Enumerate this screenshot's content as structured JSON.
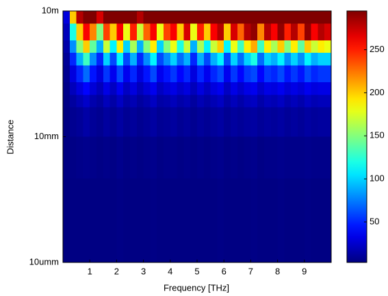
{
  "chart_data": {
    "type": "heatmap",
    "xlabel": "Frequency [THz]",
    "ylabel": "Distance",
    "xlim": [
      0,
      10
    ],
    "xticks": [
      1,
      2,
      3,
      4,
      5,
      6,
      7,
      8,
      9
    ],
    "ylim": [
      1e-05,
      10
    ],
    "yscale": "log",
    "yticks": [
      {
        "value": 1e-05,
        "label": "10umm"
      },
      {
        "value": 0.01,
        "label": "10mm"
      },
      {
        "value": 10,
        "label": "10m"
      }
    ],
    "colormap": "jet",
    "clim": [
      3,
      295
    ],
    "cticks": [
      50,
      100,
      150,
      200,
      250
    ],
    "xbins": [
      0,
      0.25,
      0.5,
      0.75,
      1,
      1.25,
      1.5,
      1.75,
      2,
      2.25,
      2.5,
      2.75,
      3,
      3.25,
      3.5,
      3.75,
      4,
      4.25,
      4.5,
      4.75,
      5,
      5.25,
      5.5,
      5.75,
      6,
      6.25,
      6.5,
      6.75,
      7,
      7.25,
      7.5,
      7.75,
      8,
      8.25,
      8.5,
      8.75,
      9,
      9.25,
      9.5,
      9.75,
      10
    ],
    "ybins": [
      10,
      5,
      2,
      1,
      0.5,
      0.2,
      0.1,
      0.05,
      0.01,
      0.001,
      1e-05
    ],
    "z": [
      [
        30,
        200,
        280,
        295,
        295,
        270,
        295,
        295,
        295,
        295,
        295,
        280,
        295,
        295,
        295,
        295,
        295,
        295,
        295,
        295,
        295,
        295,
        295,
        295,
        295,
        295,
        295,
        295,
        295,
        295,
        295,
        295,
        295,
        295,
        295,
        295,
        295,
        295,
        295,
        295
      ],
      [
        20,
        120,
        200,
        260,
        220,
        150,
        240,
        200,
        260,
        180,
        250,
        170,
        230,
        260,
        180,
        240,
        260,
        200,
        270,
        180,
        250,
        200,
        260,
        280,
        200,
        270,
        230,
        280,
        290,
        220,
        280,
        260,
        290,
        250,
        280,
        240,
        290,
        260,
        280,
        270
      ],
      [
        15,
        80,
        150,
        200,
        140,
        90,
        170,
        110,
        190,
        100,
        160,
        90,
        150,
        190,
        100,
        150,
        180,
        120,
        170,
        90,
        160,
        110,
        170,
        200,
        110,
        180,
        130,
        190,
        210,
        130,
        190,
        160,
        200,
        150,
        190,
        140,
        200,
        170,
        190,
        180
      ],
      [
        10,
        50,
        90,
        130,
        80,
        50,
        100,
        60,
        110,
        60,
        90,
        50,
        80,
        110,
        60,
        80,
        100,
        70,
        90,
        50,
        90,
        60,
        90,
        110,
        60,
        100,
        70,
        100,
        120,
        70,
        100,
        90,
        110,
        80,
        100,
        80,
        110,
        90,
        100,
        100
      ],
      [
        8,
        30,
        50,
        70,
        45,
        30,
        55,
        35,
        60,
        35,
        50,
        30,
        45,
        60,
        35,
        45,
        55,
        40,
        50,
        30,
        50,
        35,
        50,
        60,
        35,
        55,
        40,
        55,
        60,
        40,
        55,
        50,
        60,
        45,
        55,
        45,
        60,
        50,
        55,
        55
      ],
      [
        6,
        20,
        30,
        40,
        28,
        20,
        32,
        22,
        35,
        22,
        30,
        20,
        28,
        35,
        22,
        28,
        32,
        25,
        30,
        20,
        30,
        22,
        30,
        35,
        22,
        32,
        25,
        32,
        35,
        25,
        32,
        30,
        35,
        28,
        32,
        28,
        35,
        30,
        32,
        32
      ],
      [
        5,
        12,
        18,
        24,
        16,
        12,
        20,
        14,
        22,
        14,
        18,
        12,
        16,
        22,
        14,
        16,
        20,
        15,
        18,
        12,
        18,
        14,
        18,
        22,
        14,
        20,
        15,
        20,
        22,
        15,
        20,
        18,
        22,
        16,
        20,
        16,
        22,
        18,
        20,
        20
      ],
      [
        4,
        8,
        10,
        14,
        10,
        8,
        12,
        9,
        13,
        9,
        11,
        8,
        10,
        13,
        9,
        10,
        12,
        9,
        11,
        8,
        11,
        9,
        11,
        13,
        9,
        12,
        10,
        12,
        13,
        10,
        12,
        11,
        13,
        10,
        12,
        10,
        13,
        11,
        12,
        12
      ],
      [
        4,
        5,
        6,
        7,
        6,
        5,
        6,
        5,
        7,
        5,
        6,
        5,
        6,
        7,
        5,
        6,
        6,
        5,
        6,
        5,
        6,
        5,
        6,
        7,
        5,
        6,
        5,
        6,
        7,
        5,
        6,
        6,
        7,
        6,
        6,
        6,
        7,
        6,
        6,
        6
      ],
      [
        3,
        4,
        4,
        4,
        4,
        4,
        4,
        4,
        5,
        4,
        4,
        4,
        4,
        5,
        4,
        4,
        4,
        4,
        4,
        4,
        4,
        4,
        4,
        5,
        4,
        4,
        4,
        4,
        5,
        4,
        4,
        4,
        5,
        4,
        4,
        4,
        5,
        4,
        4,
        4
      ]
    ]
  }
}
